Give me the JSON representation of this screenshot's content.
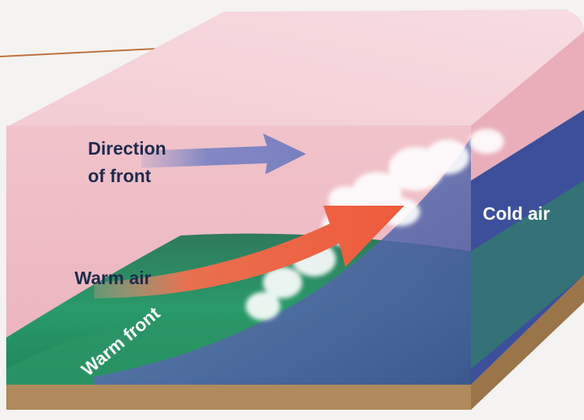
{
  "labels": {
    "direction": [
      "Direction",
      "of front"
    ],
    "warm_air": "Warm air",
    "cold_air": "Cold air",
    "warm_front": "Warm front"
  }
}
